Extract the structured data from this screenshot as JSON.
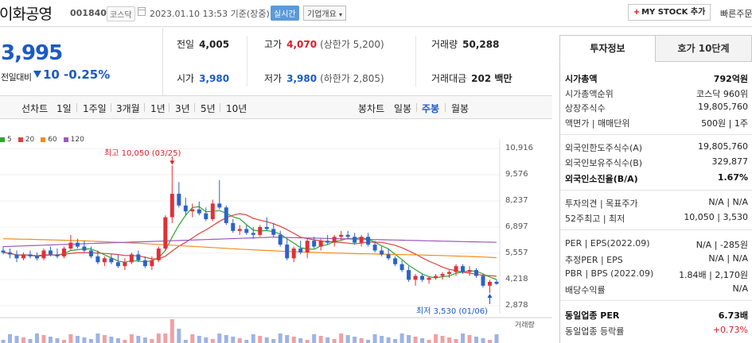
{
  "header": {
    "name": "이화공영",
    "code": "001840",
    "market": "코스닥",
    "datetime": "2023.01.10 13:53 기준(장중)",
    "realtime": "실시간",
    "company_info": "기업개요",
    "mystock": "MY STOCK 추가",
    "quick_order": "빠른주문"
  },
  "price": {
    "current": "3,995",
    "compare_label": "전일대비",
    "change": "10",
    "change_pct": "-0.25%"
  },
  "stats": {
    "prev_close_label": "전일",
    "prev_close": "4,005",
    "high_label": "고가",
    "high": "4,070",
    "upper_limit": "(상한가 5,200)",
    "volume_label": "거래량",
    "volume": "50,288",
    "open_label": "시가",
    "open": "3,980",
    "low_label": "저가",
    "low": "3,980",
    "lower_limit": "(하한가 2,805)",
    "amount_label": "거래대금",
    "amount": "202 백만"
  },
  "periods": {
    "line_chart": "선차트",
    "items": [
      "1일",
      "1주일",
      "3개월",
      "1년",
      "3년",
      "5년",
      "10년"
    ],
    "candle_chart": "봉차트",
    "candle_items": [
      "일봉",
      "주봉",
      "월봉"
    ],
    "active_candle": "주봉"
  },
  "chart_data": {
    "type": "candlestick",
    "legend": [
      {
        "name": "5",
        "color": "#2ea52e"
      },
      {
        "name": "20",
        "color": "#e0403a"
      },
      {
        "name": "60",
        "color": "#f08c1e"
      },
      {
        "name": "120",
        "color": "#9b59c0"
      }
    ],
    "y_ticks": [
      "10,916",
      "9,576",
      "8,237",
      "6,897",
      "5,557",
      "4,218",
      "2,878"
    ],
    "ylim": [
      2878,
      10916
    ],
    "high_annotation": "최고 10,050 (03/25)",
    "low_annotation": "최저 3,530 (01/06)",
    "volume_label": "거래량",
    "colors": {
      "up": "#e0303a",
      "down": "#2b63c8"
    },
    "candles": [
      [
        5700,
        5900,
        5500,
        5600
      ],
      [
        5600,
        5800,
        5300,
        5500
      ],
      [
        5500,
        5700,
        5100,
        5300
      ],
      [
        5300,
        5600,
        5200,
        5500
      ],
      [
        5500,
        5700,
        5300,
        5400
      ],
      [
        5400,
        5600,
        5200,
        5300
      ],
      [
        5300,
        5800,
        5200,
        5700
      ],
      [
        5700,
        5900,
        5400,
        5500
      ],
      [
        5500,
        5800,
        5300,
        5400
      ],
      [
        5400,
        5900,
        5300,
        5800
      ],
      [
        5800,
        6500,
        5700,
        6100
      ],
      [
        6100,
        6300,
        5800,
        5900
      ],
      [
        5900,
        6200,
        5600,
        5700
      ],
      [
        5700,
        5900,
        5300,
        5400
      ],
      [
        5400,
        5700,
        5000,
        5100
      ],
      [
        5100,
        5400,
        4900,
        5300
      ],
      [
        5300,
        5500,
        5000,
        5100
      ],
      [
        5100,
        5500,
        4800,
        4900
      ],
      [
        4900,
        5300,
        4700,
        5100
      ],
      [
        5100,
        5600,
        5000,
        5500
      ],
      [
        5500,
        5700,
        5100,
        5200
      ],
      [
        5200,
        5400,
        4800,
        4900
      ],
      [
        4900,
        5400,
        4700,
        5200
      ],
      [
        5200,
        5900,
        5100,
        5800
      ],
      [
        5800,
        7500,
        5700,
        7400
      ],
      [
        7400,
        10050,
        7100,
        8600
      ],
      [
        8600,
        9200,
        7900,
        8000
      ],
      [
        8000,
        8400,
        7500,
        7700
      ],
      [
        7700,
        8100,
        7400,
        7800
      ],
      [
        7800,
        8200,
        7500,
        7600
      ],
      [
        7600,
        7900,
        7200,
        7300
      ],
      [
        7300,
        8300,
        7200,
        8100
      ],
      [
        8100,
        9300,
        7800,
        7900
      ],
      [
        7900,
        8000,
        7000,
        7100
      ],
      [
        7100,
        7300,
        6600,
        6700
      ],
      [
        6700,
        7000,
        6500,
        6800
      ],
      [
        6800,
        7000,
        6500,
        6600
      ],
      [
        6600,
        6900,
        6300,
        6500
      ],
      [
        6500,
        7000,
        6400,
        6900
      ],
      [
        6900,
        7400,
        6700,
        6800
      ],
      [
        6800,
        7100,
        6400,
        6500
      ],
      [
        6500,
        6700,
        5900,
        6000
      ],
      [
        6000,
        6300,
        5200,
        5300
      ],
      [
        5300,
        5900,
        5100,
        5800
      ],
      [
        5800,
        6200,
        5500,
        5600
      ],
      [
        5600,
        6300,
        5300,
        6200
      ],
      [
        6200,
        6400,
        5800,
        5900
      ],
      [
        5900,
        6300,
        5700,
        6200
      ],
      [
        6200,
        6500,
        6000,
        6100
      ],
      [
        6100,
        6500,
        5900,
        6400
      ],
      [
        6400,
        6700,
        6200,
        6500
      ],
      [
        6500,
        6700,
        6300,
        6400
      ],
      [
        6400,
        6600,
        6000,
        6100
      ],
      [
        6100,
        6500,
        5900,
        6400
      ],
      [
        6400,
        6600,
        5900,
        6000
      ],
      [
        6000,
        6200,
        5600,
        5700
      ],
      [
        5700,
        5900,
        5400,
        5500
      ],
      [
        5500,
        5800,
        5200,
        5300
      ],
      [
        5300,
        5400,
        4900,
        5000
      ],
      [
        5000,
        5200,
        4600,
        4700
      ],
      [
        4700,
        4900,
        4100,
        4200
      ],
      [
        4200,
        4500,
        3900,
        4400
      ],
      [
        4400,
        4500,
        4100,
        4200
      ],
      [
        4200,
        4400,
        4000,
        4300
      ],
      [
        4300,
        4500,
        4200,
        4400
      ],
      [
        4400,
        4600,
        4200,
        4500
      ],
      [
        4500,
        4700,
        4300,
        4600
      ],
      [
        4600,
        5000,
        4400,
        4900
      ],
      [
        4900,
        5000,
        4500,
        4600
      ],
      [
        4600,
        4900,
        4400,
        4700
      ],
      [
        4700,
        4800,
        4300,
        4400
      ],
      [
        4400,
        4500,
        3800,
        3900
      ],
      [
        3900,
        4200,
        3530,
        4100
      ],
      [
        4100,
        4200,
        3950,
        3995
      ]
    ]
  },
  "invest": {
    "tab_active": "투자정보",
    "tab_other": "호가 10단계",
    "rows": [
      {
        "k": "시가총액",
        "v": "792억원",
        "bold": true
      },
      {
        "k": "시가총액순위",
        "v": "코스닥 960위"
      },
      {
        "k": "상장주식수",
        "v": "19,805,760"
      },
      {
        "k": "액면가 | 매매단위",
        "v": "500원 | 1주"
      },
      {
        "k": "외국인한도주식수(A)",
        "v": "19,805,760"
      },
      {
        "k": "외국인보유주식수(B)",
        "v": "329,877"
      },
      {
        "k": "외국인소진율(B/A)",
        "v": "1.67%",
        "bold": true
      },
      {
        "k": "투자의견 | 목표주가",
        "v": "N/A | N/A"
      },
      {
        "k": "52주최고 | 최저",
        "v": "10,050 | 3,530"
      },
      {
        "k": "PER | EPS(2022.09)",
        "v": "N/A | -285원"
      },
      {
        "k": "추정PER | EPS",
        "v": "N/A | N/A"
      },
      {
        "k": "PBR | BPS (2022.09)",
        "v": "1.84배 | 2,170원"
      },
      {
        "k": "배당수익률",
        "v": "N/A"
      },
      {
        "k": "동일업종 PER",
        "v": "6.73배",
        "bold": true
      },
      {
        "k": "동일업종 등락률",
        "v": "+0.73%",
        "red": true
      }
    ]
  }
}
